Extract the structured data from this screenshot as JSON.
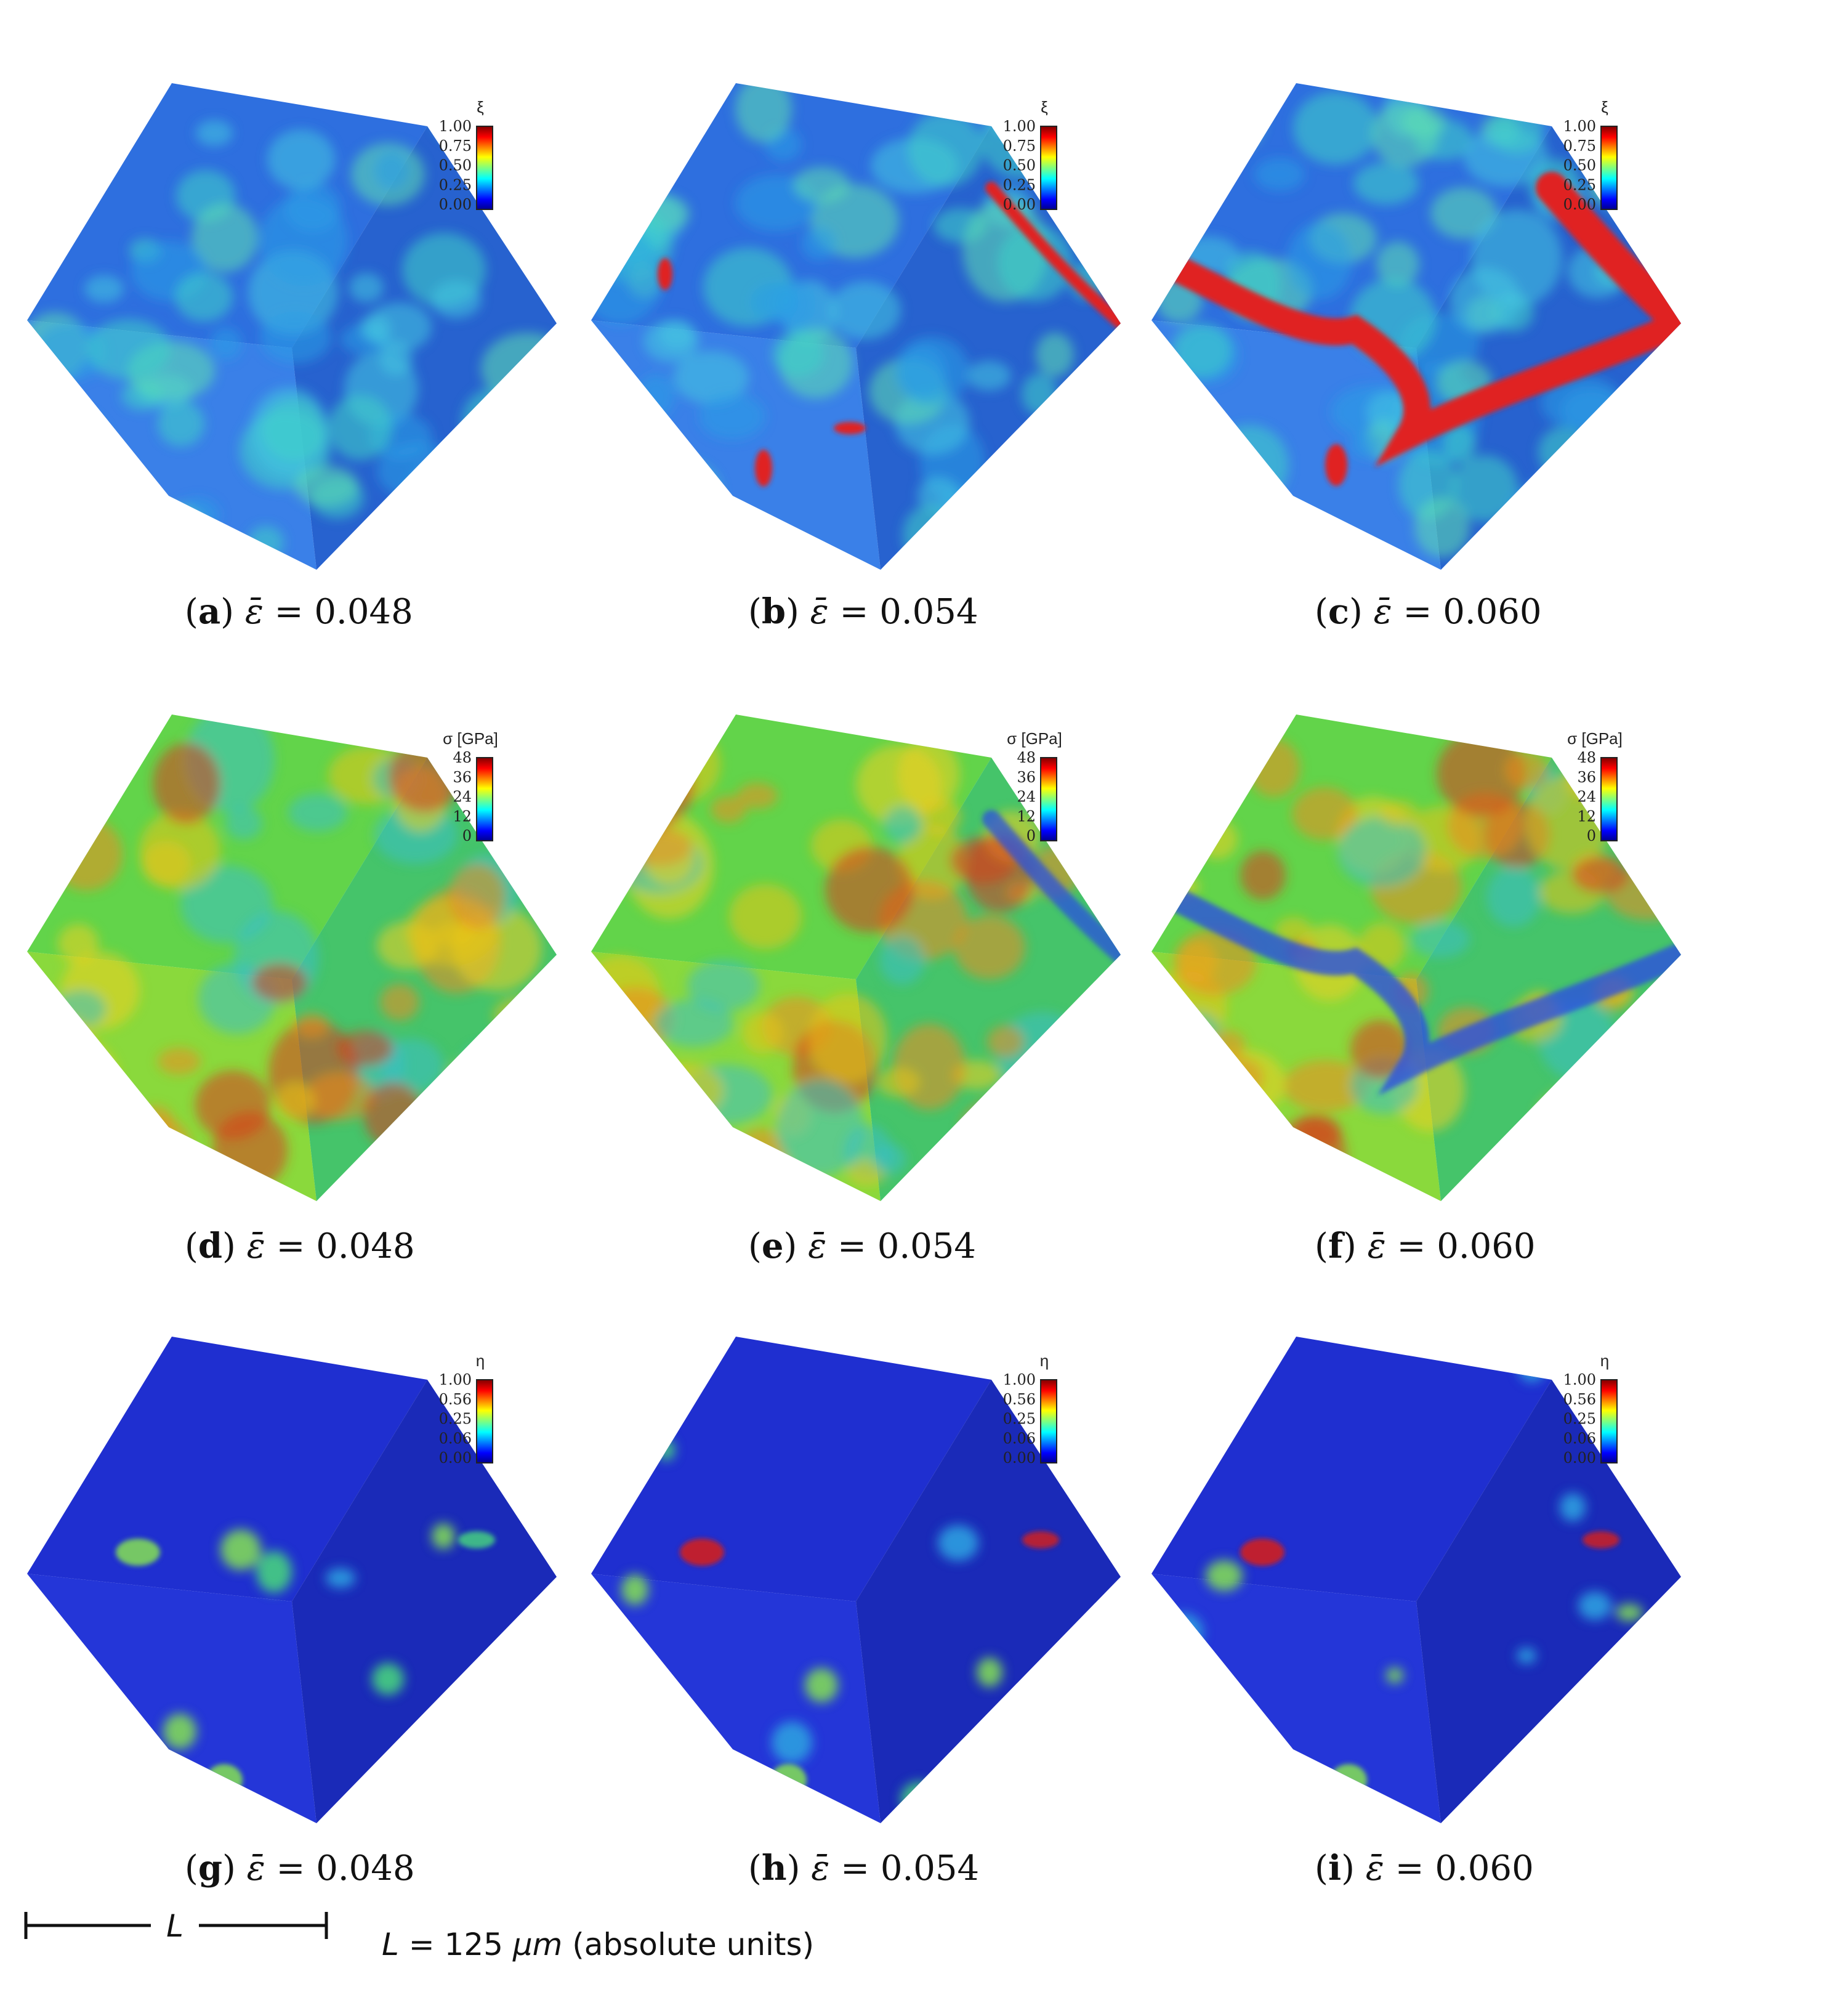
{
  "colorbars": {
    "xi": {
      "title": "ξ",
      "ticks": [
        "1.00",
        "0.75",
        "0.50",
        "0.25",
        "0.00"
      ]
    },
    "sigma": {
      "title": "σ [GPa]",
      "ticks": [
        "48",
        "36",
        "24",
        "12",
        "0"
      ]
    },
    "eta": {
      "title": "η",
      "ticks": [
        "1.00",
        "0.56",
        "0.25",
        "0.06",
        "0.00"
      ]
    }
  },
  "panels": [
    {
      "label": "a",
      "field": "xi",
      "strain": "0.048"
    },
    {
      "label": "b",
      "field": "xi",
      "strain": "0.054"
    },
    {
      "label": "c",
      "field": "xi",
      "strain": "0.060"
    },
    {
      "label": "d",
      "field": "sigma",
      "strain": "0.048"
    },
    {
      "label": "e",
      "field": "sigma",
      "strain": "0.054"
    },
    {
      "label": "f",
      "field": "sigma",
      "strain": "0.060"
    },
    {
      "label": "g",
      "field": "eta",
      "strain": "0.048"
    },
    {
      "label": "h",
      "field": "eta",
      "strain": "0.054"
    },
    {
      "label": "i",
      "field": "eta",
      "strain": "0.060"
    }
  ],
  "caption_symbol": "ε̄ =",
  "scale_bar": {
    "symbol": "L",
    "text_prefix": "L",
    "text_value": " = 125 ",
    "text_unit": "μm",
    "text_suffix": " (absolute units)"
  },
  "colors": {
    "jet": [
      "#00008f",
      "#0000ff",
      "#00a0ff",
      "#00ffff",
      "#7fff7f",
      "#ffff00",
      "#ff8000",
      "#ff0000",
      "#800000"
    ],
    "xi_base": "#2f6fe0",
    "sigma_base": "#4fd04f",
    "eta_base": "#1f33d6"
  }
}
